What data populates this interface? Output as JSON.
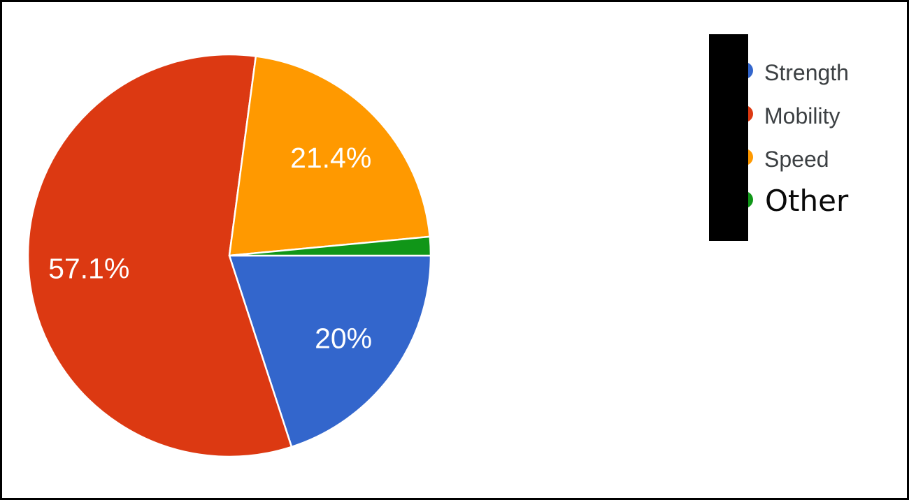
{
  "chart_data": {
    "type": "pie",
    "title": "",
    "legend_position": "right",
    "start_angle_deg": 90,
    "direction": "clockwise",
    "slices": [
      {
        "name": "Strength",
        "value": 20,
        "label": "20%",
        "color": "#3366CC"
      },
      {
        "name": "Mobility",
        "value": 57.1,
        "label": "57.1%",
        "color": "#DC3912"
      },
      {
        "name": "Speed",
        "value": 21.4,
        "label": "21.4%",
        "color": "#FF9900"
      },
      {
        "name": "Other",
        "value": 1.5,
        "label": "",
        "color": "#109618"
      }
    ],
    "label_text_color": "#ffffff"
  },
  "legend": {
    "cover_color": "#000000",
    "items": [
      {
        "label": "Strength",
        "color": "#3366CC"
      },
      {
        "label": "Mobility",
        "color": "#DC3912"
      },
      {
        "label": "Speed",
        "color": "#FF9900"
      },
      {
        "label": "Other",
        "color": "#109618"
      }
    ]
  }
}
